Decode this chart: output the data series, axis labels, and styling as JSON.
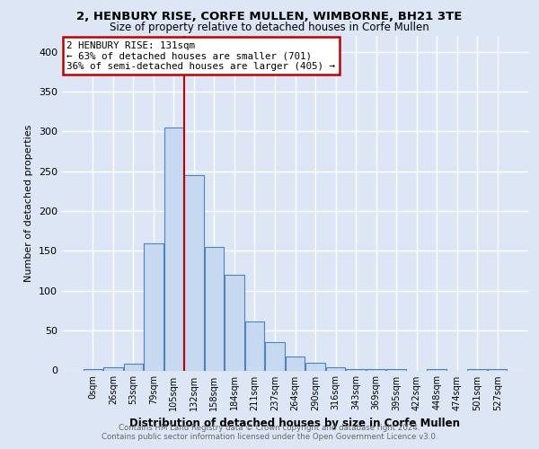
{
  "title": "2, HENBURY RISE, CORFE MULLEN, WIMBORNE, BH21 3TE",
  "subtitle": "Size of property relative to detached houses in Corfe Mullen",
  "xlabel": "Distribution of detached houses by size in Corfe Mullen",
  "ylabel": "Number of detached properties",
  "footer_line1": "Contains HM Land Registry data © Crown copyright and database right 2024.",
  "footer_line2": "Contains public sector information licensed under the Open Government Licence v3.0.",
  "bar_labels": [
    "0sqm",
    "26sqm",
    "53sqm",
    "79sqm",
    "105sqm",
    "132sqm",
    "158sqm",
    "184sqm",
    "211sqm",
    "237sqm",
    "264sqm",
    "290sqm",
    "316sqm",
    "343sqm",
    "369sqm",
    "395sqm",
    "422sqm",
    "448sqm",
    "474sqm",
    "501sqm",
    "527sqm"
  ],
  "bar_values": [
    2,
    4,
    8,
    160,
    305,
    245,
    155,
    120,
    62,
    35,
    18,
    10,
    4,
    2,
    2,
    2,
    0,
    2,
    0,
    2,
    2
  ],
  "bar_color": "#c6d9f0",
  "bar_edge_color": "#4f81bd",
  "property_label": "2 HENBURY RISE: 131sqm",
  "annotation_line1": "← 63% of detached houses are smaller (701)",
  "annotation_line2": "36% of semi-detached houses are larger (405) →",
  "vline_color": "#c00000",
  "annotation_box_color": "#c00000",
  "vline_x_bar_index": 5,
  "ylim": [
    0,
    420
  ],
  "yticks": [
    0,
    50,
    100,
    150,
    200,
    250,
    300,
    350,
    400
  ],
  "background_color": "#dce6f5",
  "plot_bg_color": "#dce6f5"
}
